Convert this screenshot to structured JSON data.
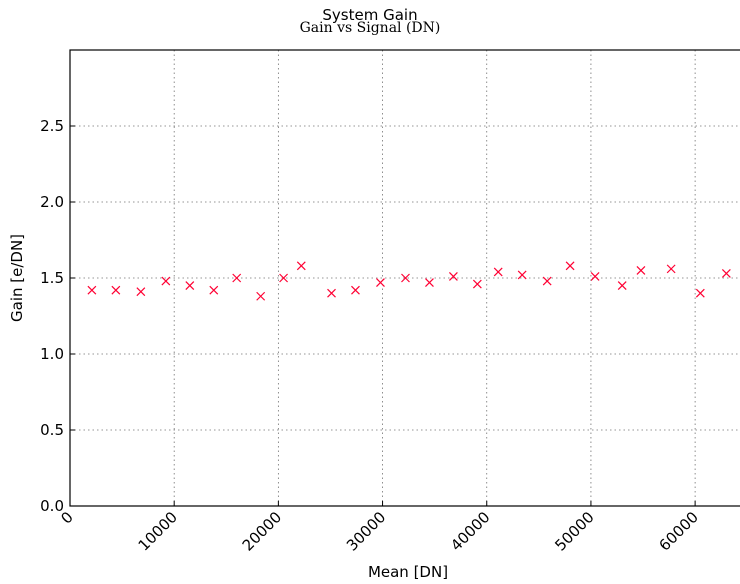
{
  "chart_data": {
    "type": "scatter",
    "title": "System Gain",
    "subtitle": "Gain vs Signal (DN)",
    "xlabel": "Mean [DN]",
    "ylabel": "Gain [e/DN]",
    "xlim": [
      0,
      64500
    ],
    "ylim": [
      0,
      3.0
    ],
    "xticks": [
      0,
      10000,
      20000,
      30000,
      40000,
      50000,
      60000
    ],
    "xtick_labels": [
      "0",
      "10000",
      "20000",
      "30000",
      "40000",
      "50000",
      "60000"
    ],
    "yticks": [
      0,
      0.5,
      1.0,
      1.5,
      2.0,
      2.5
    ],
    "ytick_labels": [
      "0.0",
      "0.5",
      "1.0",
      "1.5",
      "2.0",
      "2.5"
    ],
    "grid": true,
    "marker": "x",
    "marker_color": "#ff0033",
    "points": [
      {
        "x": 2100,
        "y": 1.42
      },
      {
        "x": 4400,
        "y": 1.42
      },
      {
        "x": 6800,
        "y": 1.41
      },
      {
        "x": 9200,
        "y": 1.48
      },
      {
        "x": 11500,
        "y": 1.45
      },
      {
        "x": 13800,
        "y": 1.42
      },
      {
        "x": 16000,
        "y": 1.5
      },
      {
        "x": 18300,
        "y": 1.38
      },
      {
        "x": 20500,
        "y": 1.5
      },
      {
        "x": 22200,
        "y": 1.58
      },
      {
        "x": 25100,
        "y": 1.4
      },
      {
        "x": 27400,
        "y": 1.42
      },
      {
        "x": 29800,
        "y": 1.47
      },
      {
        "x": 32200,
        "y": 1.5
      },
      {
        "x": 34500,
        "y": 1.47
      },
      {
        "x": 36800,
        "y": 1.51
      },
      {
        "x": 39100,
        "y": 1.46
      },
      {
        "x": 41100,
        "y": 1.54
      },
      {
        "x": 43400,
        "y": 1.52
      },
      {
        "x": 45800,
        "y": 1.48
      },
      {
        "x": 48000,
        "y": 1.58
      },
      {
        "x": 50400,
        "y": 1.51
      },
      {
        "x": 53000,
        "y": 1.45
      },
      {
        "x": 54800,
        "y": 1.55
      },
      {
        "x": 57700,
        "y": 1.56
      },
      {
        "x": 60500,
        "y": 1.4
      },
      {
        "x": 63000,
        "y": 1.53
      }
    ]
  }
}
